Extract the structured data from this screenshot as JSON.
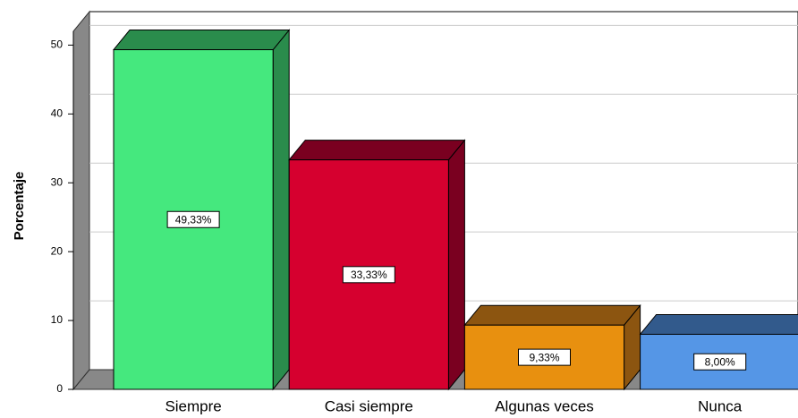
{
  "chart_data": {
    "type": "bar3d",
    "y_label": "Porcentaje",
    "categories": [
      "Siempre",
      "Casi siempre",
      "Algunas veces",
      "Nunca"
    ],
    "values": [
      49.33,
      33.33,
      9.33,
      8.0
    ],
    "value_labels": [
      "49,33%",
      "33,33%",
      "9,33%",
      "8,00%"
    ],
    "colors": [
      "#45e87e",
      "#d6002f",
      "#e8900f",
      "#5596e6"
    ],
    "side_colors": [
      "#2a8c4c",
      "#7a0020",
      "#8c5510",
      "#325a8c"
    ],
    "ylim": [
      0,
      52
    ],
    "yticks": [
      0,
      10,
      20,
      30,
      40,
      50
    ],
    "grid": true
  }
}
